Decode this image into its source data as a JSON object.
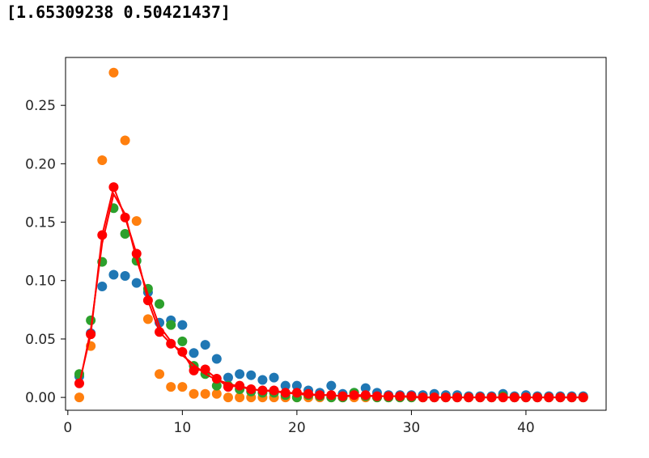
{
  "output_text": "[1.65309238 0.50421437]",
  "chart_data": {
    "type": "scatter",
    "xlim": [
      -0.2,
      47.0
    ],
    "ylim": [
      -0.011,
      0.291
    ],
    "xticks": [
      0,
      10,
      20,
      30,
      40
    ],
    "yticks": [
      0.0,
      0.05,
      0.1,
      0.15,
      0.2,
      0.25
    ],
    "xtick_labels": [
      "0",
      "10",
      "20",
      "30",
      "40"
    ],
    "ytick_labels": [
      "0.00",
      "0.05",
      "0.10",
      "0.15",
      "0.20",
      "0.25"
    ],
    "grid": false,
    "colors": {
      "blue": "#1f77b4",
      "orange": "#ff7f0e",
      "green": "#2ca02c",
      "red": "#ff0000"
    },
    "series": [
      {
        "color": "#1f77b4",
        "style": "scatter",
        "x": [
          1,
          2,
          3,
          4,
          5,
          6,
          7,
          8,
          9,
          10,
          11,
          12,
          13,
          14,
          15,
          16,
          17,
          18,
          19,
          20,
          21,
          22,
          23,
          24,
          25,
          26,
          27,
          28,
          29,
          30,
          31,
          32,
          33,
          34,
          35,
          36,
          37,
          38,
          39,
          40,
          41,
          42,
          43,
          44,
          45
        ],
        "y": [
          0.018,
          0.055,
          0.095,
          0.105,
          0.104,
          0.098,
          0.09,
          0.064,
          0.066,
          0.062,
          0.038,
          0.045,
          0.033,
          0.017,
          0.02,
          0.019,
          0.015,
          0.017,
          0.01,
          0.01,
          0.006,
          0.004,
          0.01,
          0.003,
          0.004,
          0.008,
          0.004,
          0.002,
          0.002,
          0.002,
          0.002,
          0.003,
          0.002,
          0.002,
          0.001,
          0.001,
          0.001,
          0.003,
          0.001,
          0.002,
          0.001,
          0.001,
          0.001,
          0.001,
          0.001
        ]
      },
      {
        "color": "#ff7f0e",
        "style": "scatter",
        "x": [
          1,
          2,
          3,
          4,
          5,
          6,
          7,
          8,
          9,
          10,
          11,
          12,
          13,
          14,
          15,
          16,
          17,
          18,
          19,
          20,
          21,
          22,
          23,
          24,
          25,
          26,
          27,
          28,
          29,
          30,
          31,
          32,
          33,
          34,
          35,
          36,
          37,
          38,
          39,
          40,
          41,
          42,
          43,
          44,
          45
        ],
        "y": [
          0.0,
          0.044,
          0.203,
          0.278,
          0.22,
          0.151,
          0.067,
          0.02,
          0.009,
          0.009,
          0.003,
          0.003,
          0.003,
          0.0,
          0.0,
          0.0,
          0.0,
          0.0,
          0.0,
          0.0,
          0.0,
          0.0,
          0.0,
          0.0,
          0.0,
          0.0,
          0.0,
          0.0,
          0.0,
          0.0,
          0.0,
          0.0,
          0.0,
          0.0,
          0.0,
          0.0,
          0.0,
          0.0,
          0.0,
          0.0,
          0.0,
          0.0,
          0.0,
          0.0,
          0.0
        ]
      },
      {
        "color": "#2ca02c",
        "style": "scatter",
        "x": [
          1,
          2,
          3,
          4,
          5,
          6,
          7,
          8,
          9,
          10,
          11,
          12,
          13,
          14,
          15,
          16,
          17,
          18,
          19,
          20,
          21,
          22,
          23,
          24,
          25,
          26,
          27,
          28,
          29,
          30,
          31,
          32,
          33,
          34,
          35,
          36,
          37,
          38,
          39,
          40,
          41,
          42,
          43,
          44,
          45
        ],
        "y": [
          0.02,
          0.066,
          0.116,
          0.162,
          0.14,
          0.117,
          0.093,
          0.08,
          0.062,
          0.048,
          0.027,
          0.02,
          0.01,
          0.01,
          0.007,
          0.005,
          0.004,
          0.004,
          0.002,
          0.0,
          0.002,
          0.001,
          0.0,
          0.0,
          0.004,
          0.001,
          0.0,
          0.0,
          0.0,
          0.0,
          0.0,
          0.0,
          0.0,
          0.0,
          0.0,
          0.0,
          0.0,
          0.001,
          0.0,
          0.0,
          0.0,
          0.0,
          0.0,
          0.0,
          0.0
        ]
      },
      {
        "color": "#ff0000",
        "style": "line+scatter",
        "x": [
          1,
          2,
          3,
          4,
          5,
          6,
          7,
          8,
          9,
          10,
          11,
          12,
          13,
          14,
          15,
          16,
          17,
          18,
          19,
          20,
          21,
          22,
          23,
          24,
          25,
          26,
          27,
          28,
          29,
          30,
          31,
          32,
          33,
          34,
          35,
          36,
          37,
          38,
          39,
          40,
          41,
          42,
          43,
          44,
          45
        ],
        "y": [
          0.012,
          0.054,
          0.139,
          0.18,
          0.154,
          0.123,
          0.083,
          0.056,
          0.046,
          0.039,
          0.023,
          0.024,
          0.016,
          0.009,
          0.01,
          0.007,
          0.006,
          0.006,
          0.004,
          0.004,
          0.003,
          0.002,
          0.002,
          0.001,
          0.002,
          0.002,
          0.001,
          0.001,
          0.001,
          0.001,
          0.0,
          0.0,
          0.0,
          0.0,
          0.0,
          0.0,
          0.0,
          0.0,
          0.0,
          0.0,
          0.0,
          0.0,
          0.0,
          0.0,
          0.0
        ]
      },
      {
        "color": "#ff0000",
        "style": "line",
        "x": [
          1,
          2,
          3,
          4,
          5,
          6,
          7,
          8,
          9,
          10,
          11,
          12,
          13,
          14,
          15,
          16,
          17,
          18,
          19,
          20,
          21,
          22,
          23,
          24,
          25,
          26,
          27,
          28,
          29,
          30,
          31,
          32,
          33,
          34,
          35,
          36,
          37,
          38,
          39,
          40,
          41,
          42,
          43,
          44,
          45
        ],
        "y": [
          0.01,
          0.058,
          0.132,
          0.174,
          0.157,
          0.118,
          0.088,
          0.061,
          0.048,
          0.036,
          0.028,
          0.02,
          0.015,
          0.012,
          0.009,
          0.007,
          0.006,
          0.005,
          0.004,
          0.003,
          0.002,
          0.002,
          0.002,
          0.001,
          0.001,
          0.001,
          0.001,
          0.001,
          0.001,
          0.0,
          0.0,
          0.0,
          0.0,
          0.0,
          0.0,
          0.0,
          0.0,
          0.0,
          0.0,
          0.0,
          0.0,
          0.0,
          0.0,
          0.0,
          0.0
        ]
      }
    ]
  }
}
